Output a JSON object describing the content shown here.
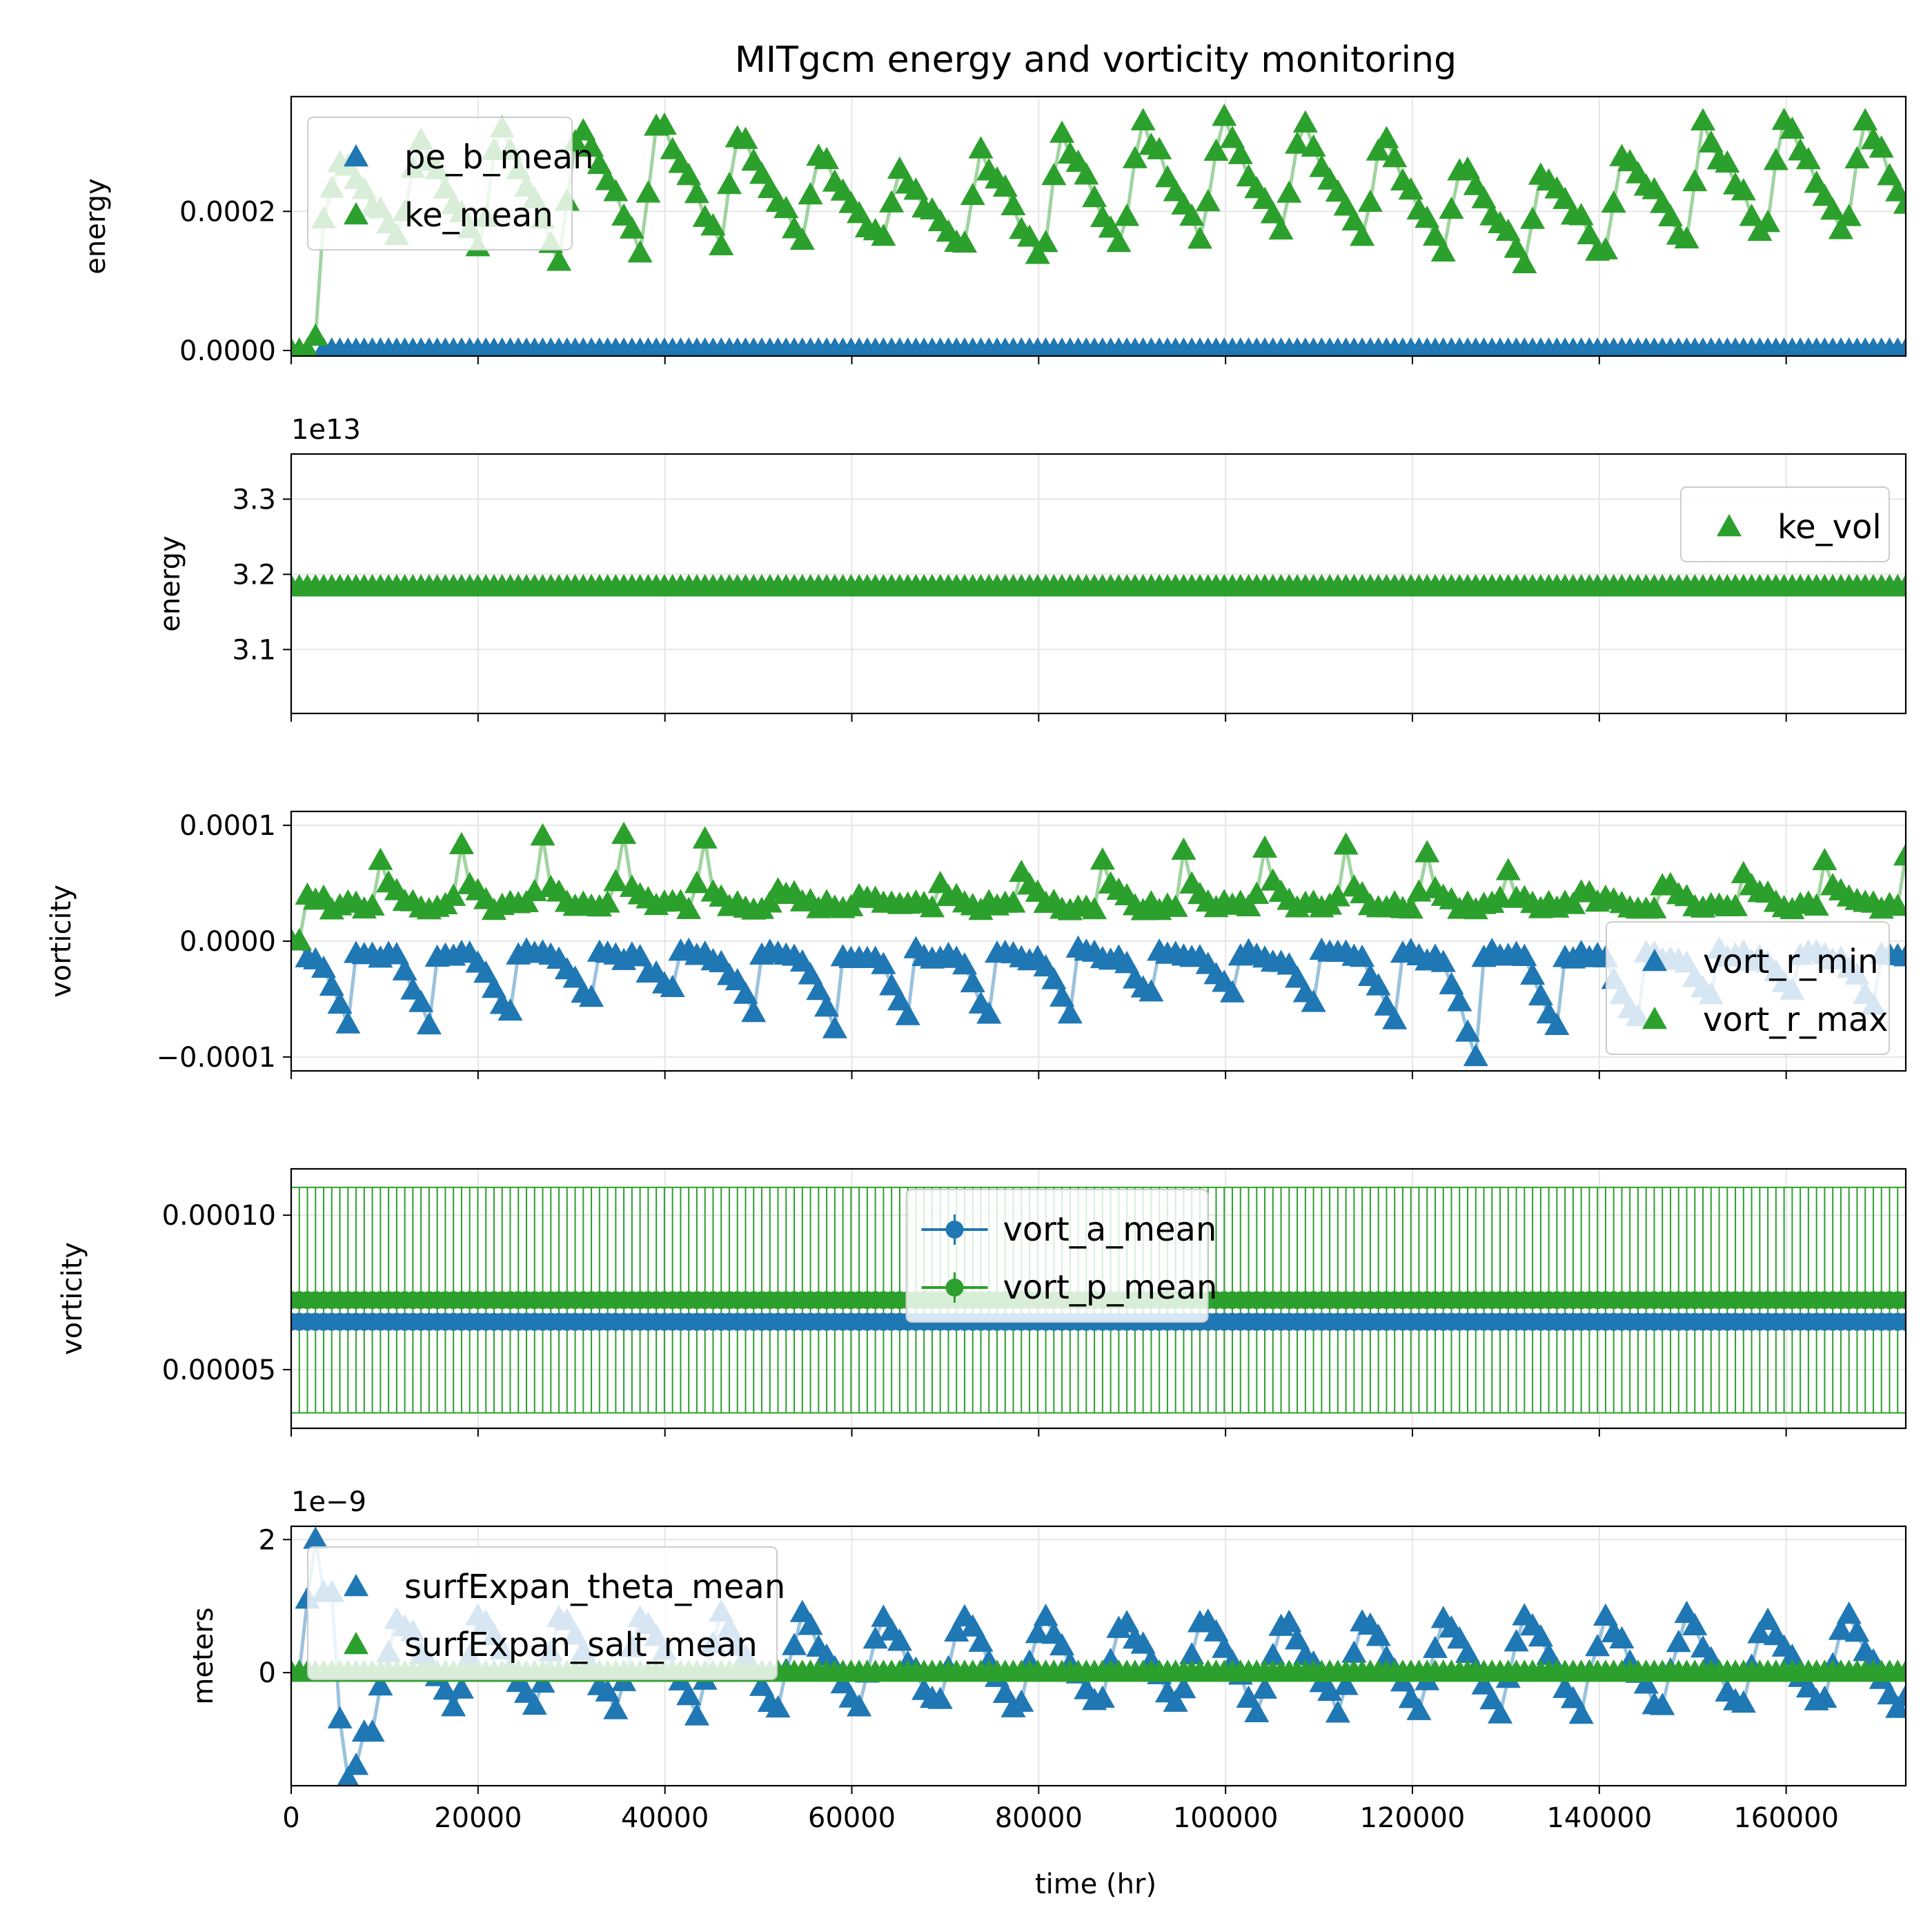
{
  "colors": {
    "blue": "#1f77b4",
    "green": "#2ca02c"
  },
  "chart_data": [
    {
      "type": "scatter",
      "title": "MITgcm energy and vorticity monitoring",
      "ylabel": "energy",
      "xlim": [
        0,
        172800
      ],
      "ylim": [
        -8e-06,
        0.000365
      ],
      "yticks": [
        0,
        0.0002
      ],
      "ytick_labels": [
        "0.0000",
        "0.0002"
      ],
      "grid": true,
      "legend": "upper left",
      "series": [
        {
          "name": "pe_b_mean",
          "color": "#1f77b4",
          "marker": "triangle",
          "generator": "const",
          "params": {
            "start": 3000,
            "value": 0.0
          }
        },
        {
          "name": "ke_mean",
          "color": "#2ca02c",
          "marker": "triangle",
          "generator": "ke_mean"
        }
      ]
    },
    {
      "type": "scatter",
      "ylabel": "energy",
      "offset_text": "1e13",
      "xlim": [
        0,
        172800
      ],
      "ylim": [
        3.015,
        3.36
      ],
      "yticks": [
        3.1,
        3.2,
        3.3
      ],
      "ytick_labels": [
        "3.1",
        "3.2",
        "3.3"
      ],
      "grid": true,
      "legend": "upper right",
      "series": [
        {
          "name": "ke_vol",
          "color": "#2ca02c",
          "marker": "triangle",
          "generator": "const",
          "params": {
            "start": 0,
            "value": 3.183
          }
        }
      ]
    },
    {
      "type": "scatter",
      "ylabel": "vorticity",
      "xlim": [
        0,
        172800
      ],
      "ylim": [
        -0.000112,
        0.000112
      ],
      "yticks": [
        -0.0001,
        0,
        0.0001
      ],
      "ytick_labels": [
        "−0.0001",
        "0.0000",
        "0.0001"
      ],
      "grid": true,
      "legend": "lower right",
      "series": [
        {
          "name": "vort_r_min",
          "color": "#1f77b4",
          "marker": "triangle",
          "generator": "vort_min"
        },
        {
          "name": "vort_r_max",
          "color": "#2ca02c",
          "marker": "triangle",
          "generator": "vort_max"
        }
      ]
    },
    {
      "type": "errorbar",
      "ylabel": "vorticity",
      "xlim": [
        0,
        172800
      ],
      "ylim": [
        3.1e-05,
        0.000115
      ],
      "yticks": [
        5e-05,
        0.0001
      ],
      "ytick_labels": [
        "0.00005",
        "0.00010"
      ],
      "grid": true,
      "legend": "upper center",
      "series": [
        {
          "name": "vort_a_mean",
          "color": "#1f77b4",
          "marker": "circle",
          "value": 6.55e-05,
          "error": 8e-07
        },
        {
          "name": "vort_p_mean",
          "color": "#2ca02c",
          "marker": "circle",
          "value": 7.25e-05,
          "error": 3.65e-05
        }
      ]
    },
    {
      "type": "scatter",
      "ylabel": "meters",
      "offset_text": "1e−9",
      "xlabel": "time (hr)",
      "xlim": [
        0,
        172800
      ],
      "ylim": [
        -1.7,
        2.2
      ],
      "yticks": [
        0,
        2
      ],
      "ytick_labels": [
        "0",
        "2"
      ],
      "xticks": [
        0,
        20000,
        40000,
        60000,
        80000,
        100000,
        120000,
        140000,
        160000
      ],
      "xtick_labels": [
        "0",
        "20000",
        "40000",
        "60000",
        "80000",
        "100000",
        "120000",
        "140000",
        "160000"
      ],
      "grid": true,
      "legend": "upper left",
      "series": [
        {
          "name": "surfExpan_theta_mean",
          "color": "#1f77b4",
          "marker": "triangle",
          "generator": "surf_theta"
        },
        {
          "name": "surfExpan_salt_mean",
          "color": "#2ca02c",
          "marker": "triangle",
          "generator": "const",
          "params": {
            "start": 0,
            "value": 0.0
          }
        }
      ]
    }
  ]
}
